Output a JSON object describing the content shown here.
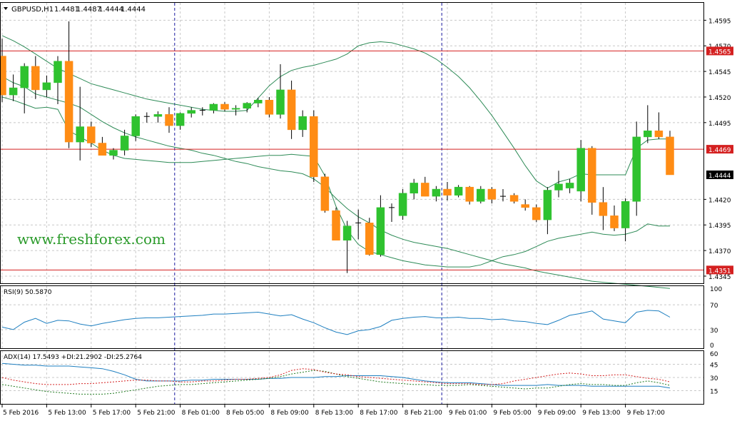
{
  "header": {
    "symbol_label": "GBPUSD,H1",
    "ohlc": [
      "1.4481",
      "1.4487",
      "1.4444",
      "1.4444"
    ]
  },
  "watermark": "www.freshforex.com",
  "rsi_label": "RSI(9) 50.5870",
  "adx_label": "ADX(14) 17.5493 +DI:21.2902 -DI:25.2764",
  "colors": {
    "bull": "#2fc22f",
    "bear": "#ff8c14",
    "band": "#2e8b57",
    "level_line": "#d42020",
    "level_badge": "#d42020",
    "current_badge": "#000000",
    "rsi_line": "#1e7fc0",
    "adx_line": "#1e7fc0",
    "di_plus": "#1f7a1f",
    "di_minus": "#d42020",
    "watermark": "#2a9a2a",
    "grid": "#c8c8c8",
    "session_line": "#1a1aa0"
  },
  "chart_data": [
    {
      "type": "candlestick",
      "symbol": "GBPUSD",
      "timeframe": "H1",
      "ylim": [
        1.4338,
        1.4612
      ],
      "y_ticks": [
        "1.4595",
        "1.4570",
        "1.4545",
        "1.4520",
        "1.4495",
        "1.4420",
        "1.4395",
        "1.4370",
        "1.4345"
      ],
      "level_lines": [
        "1.4565",
        "1.4469",
        "1.4351"
      ],
      "current_price": "1.4444",
      "x_ticks": [
        {
          "label": "5 Feb 2016",
          "index": 0
        },
        {
          "label": "5 Feb 13:00",
          "index": 4
        },
        {
          "label": "5 Feb 17:00",
          "index": 8
        },
        {
          "label": "5 Feb 21:00",
          "index": 12
        },
        {
          "label": "8 Feb 01:00",
          "index": 16
        },
        {
          "label": "8 Feb 05:00",
          "index": 20
        },
        {
          "label": "8 Feb 09:00",
          "index": 24
        },
        {
          "label": "8 Feb 13:00",
          "index": 28
        },
        {
          "label": "8 Feb 17:00",
          "index": 32
        },
        {
          "label": "8 Feb 21:00",
          "index": 36
        },
        {
          "label": "9 Feb 01:00",
          "index": 40
        },
        {
          "label": "9 Feb 05:00",
          "index": 44
        },
        {
          "label": "9 Feb 09:00",
          "index": 48
        },
        {
          "label": "9 Feb 13:00",
          "index": 52
        },
        {
          "label": "9 Feb 17:00",
          "index": 56
        }
      ],
      "session_separators": [
        15,
        39
      ],
      "candles": [
        {
          "o": 1.456,
          "h": 1.4577,
          "l": 1.4515,
          "c": 1.4522
        },
        {
          "o": 1.4522,
          "h": 1.4542,
          "l": 1.4516,
          "c": 1.4529
        },
        {
          "o": 1.4529,
          "h": 1.4553,
          "l": 1.4504,
          "c": 1.455
        },
        {
          "o": 1.455,
          "h": 1.456,
          "l": 1.4518,
          "c": 1.4527
        },
        {
          "o": 1.4527,
          "h": 1.4541,
          "l": 1.452,
          "c": 1.4534
        },
        {
          "o": 1.4534,
          "h": 1.456,
          "l": 1.4513,
          "c": 1.4555
        },
        {
          "o": 1.4555,
          "h": 1.4594,
          "l": 1.447,
          "c": 1.4476
        },
        {
          "o": 1.4476,
          "h": 1.453,
          "l": 1.4458,
          "c": 1.4491
        },
        {
          "o": 1.4491,
          "h": 1.4496,
          "l": 1.4471,
          "c": 1.4475
        },
        {
          "o": 1.4475,
          "h": 1.4481,
          "l": 1.4463,
          "c": 1.4463
        },
        {
          "o": 1.4463,
          "h": 1.447,
          "l": 1.4459,
          "c": 1.4468
        },
        {
          "o": 1.4468,
          "h": 1.4488,
          "l": 1.4463,
          "c": 1.4482
        },
        {
          "o": 1.4482,
          "h": 1.4503,
          "l": 1.4477,
          "c": 1.4501
        },
        {
          "o": 1.4501,
          "h": 1.4505,
          "l": 1.4495,
          "c": 1.4501
        },
        {
          "o": 1.4501,
          "h": 1.4506,
          "l": 1.4495,
          "c": 1.4503
        },
        {
          "o": 1.4503,
          "h": 1.451,
          "l": 1.4485,
          "c": 1.4492
        },
        {
          "o": 1.4492,
          "h": 1.4505,
          "l": 1.4488,
          "c": 1.4504
        },
        {
          "o": 1.4504,
          "h": 1.451,
          "l": 1.45,
          "c": 1.4507
        },
        {
          "o": 1.4507,
          "h": 1.451,
          "l": 1.4502,
          "c": 1.4507
        },
        {
          "o": 1.4507,
          "h": 1.4514,
          "l": 1.4504,
          "c": 1.4513
        },
        {
          "o": 1.4513,
          "h": 1.4515,
          "l": 1.4506,
          "c": 1.4508
        },
        {
          "o": 1.4508,
          "h": 1.4512,
          "l": 1.4502,
          "c": 1.4509
        },
        {
          "o": 1.4509,
          "h": 1.4515,
          "l": 1.4505,
          "c": 1.4514
        },
        {
          "o": 1.4514,
          "h": 1.4519,
          "l": 1.451,
          "c": 1.4517
        },
        {
          "o": 1.4517,
          "h": 1.452,
          "l": 1.45,
          "c": 1.4503
        },
        {
          "o": 1.4503,
          "h": 1.4552,
          "l": 1.4499,
          "c": 1.4527
        },
        {
          "o": 1.4527,
          "h": 1.4536,
          "l": 1.4479,
          "c": 1.4488
        },
        {
          "o": 1.4488,
          "h": 1.4507,
          "l": 1.4481,
          "c": 1.4501
        },
        {
          "o": 1.4501,
          "h": 1.4507,
          "l": 1.4437,
          "c": 1.4442
        },
        {
          "o": 1.4442,
          "h": 1.4445,
          "l": 1.4407,
          "c": 1.4409
        },
        {
          "o": 1.4409,
          "h": 1.4412,
          "l": 1.438,
          "c": 1.438
        },
        {
          "o": 1.438,
          "h": 1.4399,
          "l": 1.4348,
          "c": 1.4394
        },
        {
          "o": 1.4397,
          "h": 1.441,
          "l": 1.4381,
          "c": 1.4397
        },
        {
          "o": 1.4397,
          "h": 1.4402,
          "l": 1.4365,
          "c": 1.4366
        },
        {
          "o": 1.4366,
          "h": 1.4424,
          "l": 1.4364,
          "c": 1.4412
        },
        {
          "o": 1.4412,
          "h": 1.4416,
          "l": 1.4398,
          "c": 1.4412
        },
        {
          "o": 1.4404,
          "h": 1.443,
          "l": 1.44,
          "c": 1.4426
        },
        {
          "o": 1.4426,
          "h": 1.444,
          "l": 1.442,
          "c": 1.4436
        },
        {
          "o": 1.4436,
          "h": 1.4442,
          "l": 1.4423,
          "c": 1.4423
        },
        {
          "o": 1.4423,
          "h": 1.4433,
          "l": 1.4418,
          "c": 1.443
        },
        {
          "o": 1.443,
          "h": 1.4437,
          "l": 1.4419,
          "c": 1.4424
        },
        {
          "o": 1.4424,
          "h": 1.4434,
          "l": 1.4422,
          "c": 1.4432
        },
        {
          "o": 1.4432,
          "h": 1.4433,
          "l": 1.4415,
          "c": 1.4418
        },
        {
          "o": 1.4418,
          "h": 1.4433,
          "l": 1.4416,
          "c": 1.443
        },
        {
          "o": 1.443,
          "h": 1.4432,
          "l": 1.4416,
          "c": 1.442
        },
        {
          "o": 1.4423,
          "h": 1.443,
          "l": 1.4418,
          "c": 1.4423
        },
        {
          "o": 1.4424,
          "h": 1.4426,
          "l": 1.4416,
          "c": 1.4418
        },
        {
          "o": 1.4415,
          "h": 1.442,
          "l": 1.4409,
          "c": 1.4412
        },
        {
          "o": 1.4412,
          "h": 1.4415,
          "l": 1.4398,
          "c": 1.44
        },
        {
          "o": 1.44,
          "h": 1.4432,
          "l": 1.4386,
          "c": 1.4429
        },
        {
          "o": 1.4429,
          "h": 1.4448,
          "l": 1.4422,
          "c": 1.4435
        },
        {
          "o": 1.4431,
          "h": 1.444,
          "l": 1.4426,
          "c": 1.4436
        },
        {
          "o": 1.4428,
          "h": 1.4478,
          "l": 1.4418,
          "c": 1.447
        },
        {
          "o": 1.447,
          "h": 1.4472,
          "l": 1.4405,
          "c": 1.4417
        },
        {
          "o": 1.4417,
          "h": 1.4432,
          "l": 1.439,
          "c": 1.4404
        },
        {
          "o": 1.4404,
          "h": 1.4414,
          "l": 1.4389,
          "c": 1.4392
        },
        {
          "o": 1.4392,
          "h": 1.4421,
          "l": 1.4379,
          "c": 1.4418
        },
        {
          "o": 1.4418,
          "h": 1.4496,
          "l": 1.4404,
          "c": 1.4481
        },
        {
          "o": 1.4481,
          "h": 1.4512,
          "l": 1.4475,
          "c": 1.4487
        },
        {
          "o": 1.4487,
          "h": 1.4505,
          "l": 1.4479,
          "c": 1.4481
        },
        {
          "o": 1.4481,
          "h": 1.4487,
          "l": 1.4444,
          "c": 1.4444
        }
      ],
      "bollinger": {
        "upper": [
          1.458,
          1.4575,
          1.4569,
          1.4562,
          1.4555,
          1.4548,
          1.4543,
          1.4538,
          1.4533,
          1.453,
          1.4527,
          1.4524,
          1.4521,
          1.4518,
          1.4516,
          1.4514,
          1.4512,
          1.451,
          1.4508,
          1.4507,
          1.4506,
          1.4506,
          1.4507,
          1.4519,
          1.4531,
          1.454,
          1.4546,
          1.4549,
          1.4551,
          1.4554,
          1.4557,
          1.4562,
          1.457,
          1.4573,
          1.4574,
          1.4573,
          1.457,
          1.4567,
          1.4563,
          1.4557,
          1.4549,
          1.454,
          1.4529,
          1.4516,
          1.4502,
          1.4486,
          1.447,
          1.4453,
          1.4438,
          1.4431,
          1.4437,
          1.444,
          1.4445,
          1.4444,
          1.4444,
          1.4444,
          1.4444,
          1.447,
          1.4478,
          1.4479,
          1.4479
        ],
        "middle": [
          1.454,
          1.4534,
          1.453,
          1.4523,
          1.452,
          1.4517,
          1.4514,
          1.451,
          1.4503,
          1.4496,
          1.449,
          1.4485,
          1.4481,
          1.4478,
          1.4475,
          1.4472,
          1.447,
          1.4468,
          1.4465,
          1.4463,
          1.446,
          1.4457,
          1.4455,
          1.4452,
          1.445,
          1.4448,
          1.4447,
          1.4445,
          1.444,
          1.4432,
          1.4421,
          1.4411,
          1.4403,
          1.4397,
          1.439,
          1.4385,
          1.4381,
          1.4378,
          1.4376,
          1.4374,
          1.4372,
          1.4369,
          1.4366,
          1.4363,
          1.436,
          1.4357,
          1.4355,
          1.4353,
          1.435,
          1.4348,
          1.4346,
          1.4344,
          1.4342,
          1.434,
          1.4339,
          1.4338,
          1.4337,
          1.4336,
          1.4335,
          1.4334,
          1.4333
        ],
        "lower": [
          1.452,
          1.4517,
          1.4513,
          1.4509,
          1.451,
          1.4508,
          1.4487,
          1.4481,
          1.4475,
          1.4468,
          1.4463,
          1.446,
          1.4459,
          1.4458,
          1.4457,
          1.4456,
          1.4456,
          1.4456,
          1.4457,
          1.4458,
          1.4459,
          1.446,
          1.4461,
          1.4462,
          1.4463,
          1.4463,
          1.4464,
          1.4463,
          1.4462,
          1.4443,
          1.4413,
          1.439,
          1.4376,
          1.4369,
          1.4366,
          1.4363,
          1.436,
          1.4358,
          1.4356,
          1.4355,
          1.4354,
          1.4354,
          1.4354,
          1.4356,
          1.436,
          1.4364,
          1.4366,
          1.4369,
          1.4374,
          1.4379,
          1.4382,
          1.4384,
          1.4386,
          1.4388,
          1.4386,
          1.4385,
          1.4386,
          1.4389,
          1.4396,
          1.4394,
          1.4394
        ]
      }
    },
    {
      "type": "line",
      "title": "RSI(9) 50.5870",
      "ylim": [
        0,
        100
      ],
      "y_ticks": [
        "100",
        "70",
        "30",
        "0"
      ],
      "series": [
        {
          "name": "RSI(9)",
          "values": [
            34,
            30,
            42,
            48,
            40,
            45,
            44,
            39,
            36,
            40,
            43,
            46,
            48,
            49,
            49,
            50,
            51,
            52,
            53,
            55,
            55,
            56,
            57,
            58,
            55,
            52,
            54,
            47,
            41,
            33,
            26,
            22,
            28,
            30,
            35,
            45,
            48,
            50,
            51,
            49,
            49,
            50,
            48,
            48,
            46,
            47,
            44,
            43,
            40,
            38,
            45,
            53,
            56,
            60,
            47,
            44,
            41,
            58,
            61,
            60,
            50
          ]
        }
      ]
    },
    {
      "type": "line",
      "title": "ADX(14) 17.5493 +DI:21.2902 -DI:25.2764",
      "ylim": [
        0,
        60
      ],
      "y_ticks": [
        "60",
        "45",
        "30",
        "15"
      ],
      "series": [
        {
          "name": "ADX(14)",
          "values": [
            46,
            45,
            44,
            44,
            43,
            43,
            43,
            42,
            41,
            40,
            37,
            33,
            28,
            26,
            26,
            26,
            26,
            27,
            27,
            28,
            28,
            28,
            28,
            28,
            29,
            29,
            30,
            30,
            30,
            31,
            31,
            32,
            32,
            32,
            32,
            31,
            30,
            28,
            26,
            25,
            24,
            24,
            24,
            23,
            22,
            21,
            21,
            21,
            21,
            22,
            21,
            21,
            21,
            20,
            20,
            20,
            20,
            20,
            20,
            20,
            18
          ]
        },
        {
          "name": "+DI",
          "values": [
            22,
            20,
            18,
            16,
            14,
            13,
            12,
            11,
            11,
            11,
            12,
            14,
            16,
            18,
            20,
            21,
            22,
            22,
            23,
            24,
            25,
            26,
            27,
            28,
            29,
            31,
            34,
            36,
            38,
            37,
            34,
            31,
            29,
            27,
            25,
            24,
            23,
            22,
            22,
            21,
            21,
            21,
            22,
            21,
            20,
            19,
            18,
            17,
            18,
            18,
            20,
            22,
            23,
            22,
            22,
            21,
            21,
            24,
            26,
            24,
            21
          ]
        },
        {
          "name": "-DI",
          "values": [
            30,
            27,
            25,
            23,
            22,
            22,
            22,
            23,
            23,
            24,
            25,
            26,
            27,
            27,
            26,
            26,
            25,
            25,
            26,
            26,
            27,
            28,
            28,
            29,
            30,
            33,
            38,
            40,
            39,
            36,
            34,
            33,
            31,
            30,
            29,
            28,
            27,
            26,
            25,
            24,
            23,
            23,
            23,
            22,
            22,
            23,
            26,
            28,
            30,
            32,
            34,
            35,
            34,
            32,
            32,
            33,
            33,
            31,
            29,
            28,
            25
          ]
        }
      ]
    }
  ]
}
